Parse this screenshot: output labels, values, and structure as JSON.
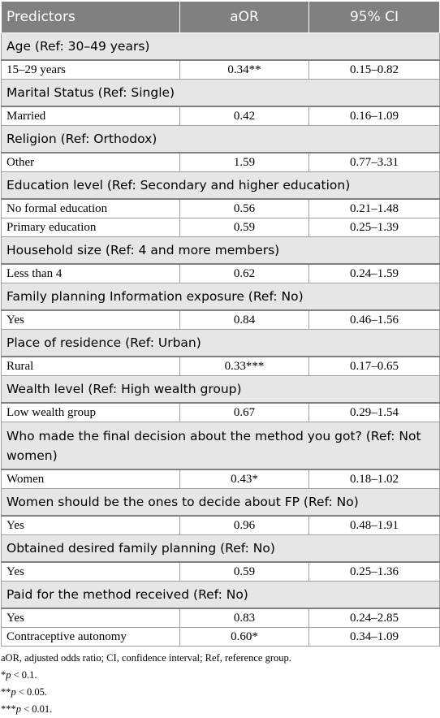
{
  "table": {
    "headers": [
      "Predictors",
      "aOR",
      "95% CI"
    ],
    "groups": [
      {
        "label": "Age (Ref: 30–49 years)",
        "rows": [
          {
            "name": "15–29 years",
            "aor": "0.34**",
            "ci": "0.15–0.82"
          }
        ]
      },
      {
        "label": "Marital Status (Ref: Single)",
        "rows": [
          {
            "name": "Married",
            "aor": "0.42",
            "ci": "0.16–1.09"
          }
        ]
      },
      {
        "label": "Religion (Ref: Orthodox)",
        "rows": [
          {
            "name": "Other",
            "aor": "1.59",
            "ci": "0.77–3.31"
          }
        ]
      },
      {
        "label": "Education level (Ref: Secondary and higher education)",
        "rows": [
          {
            "name": "No formal education",
            "aor": "0.56",
            "ci": "0.21–1.48"
          },
          {
            "name": "Primary education",
            "aor": "0.59",
            "ci": "0.25–1.39"
          }
        ]
      },
      {
        "label": "Household size (Ref: 4 and more members)",
        "rows": [
          {
            "name": "Less than 4",
            "aor": "0.62",
            "ci": "0.24–1.59"
          }
        ]
      },
      {
        "label": "Family planning Information exposure (Ref: No)",
        "rows": [
          {
            "name": "Yes",
            "aor": "0.84",
            "ci": "0.46–1.56"
          }
        ]
      },
      {
        "label": "Place of residence (Ref: Urban)",
        "rows": [
          {
            "name": "Rural",
            "aor": "0.33***",
            "ci": "0.17–0.65"
          }
        ]
      },
      {
        "label": "Wealth level (Ref: High wealth group)",
        "rows": [
          {
            "name": "Low wealth group",
            "aor": "0.67",
            "ci": "0.29–1.54"
          }
        ]
      },
      {
        "label": "Who made the final decision about the method you got? (Ref: Not women)",
        "tall": true,
        "rows": [
          {
            "name": "Women",
            "aor": "0.43*",
            "ci": "0.18–1.02"
          }
        ]
      },
      {
        "label": "Women should be the ones to decide about FP (Ref: No)",
        "rows": [
          {
            "name": "Yes",
            "aor": "0.96",
            "ci": "0.48–1.91"
          }
        ]
      },
      {
        "label": "Obtained desired family planning (Ref: No)",
        "rows": [
          {
            "name": "Yes",
            "aor": "0.59",
            "ci": "0.25–1.36"
          }
        ]
      },
      {
        "label": "Paid for the method received (Ref: No)",
        "rows": [
          {
            "name": "Yes",
            "aor": "0.83",
            "ci": "0.24–2.85"
          },
          {
            "name": "Contraceptive autonomy",
            "aor": "0.60*",
            "ci": "0.34–1.09"
          }
        ]
      }
    ]
  },
  "notes": {
    "abbreviations": "aOR, adjusted odds ratio; CI, confidence interval; Ref, reference group.",
    "footnotes": [
      {
        "marker": "*",
        "symbol": "p",
        "text": " < 0.1."
      },
      {
        "marker": "**",
        "symbol": "p",
        "text": " < 0.05."
      },
      {
        "marker": "***",
        "symbol": "p",
        "text": " < 0.01."
      }
    ]
  }
}
